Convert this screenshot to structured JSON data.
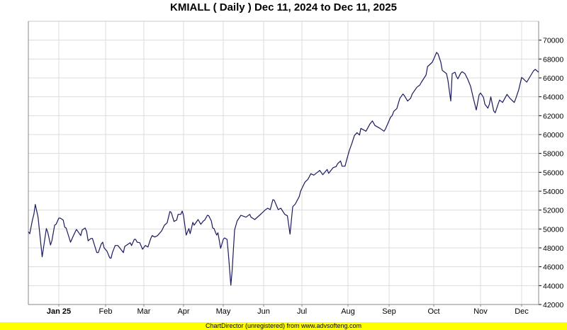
{
  "chart_data": {
    "type": "line",
    "title": "KMIALL ( Daily ) Dec 11, 2024 to Dec 11, 2025",
    "xlabel": "",
    "ylabel": "",
    "ylim": [
      42000,
      72000
    ],
    "y_ticks": [
      42000,
      44000,
      46000,
      48000,
      50000,
      52000,
      54000,
      56000,
      58000,
      60000,
      62000,
      64000,
      66000,
      68000,
      70000
    ],
    "x_tick_labels": [
      "Jan 25",
      "Feb",
      "Mar",
      "Apr",
      "May",
      "Jun",
      "Jul",
      "Aug",
      "Sep",
      "Oct",
      "Nov",
      "Dec"
    ],
    "grid": true,
    "y_axis_side": "right",
    "line_color": "#1a1a5e",
    "series": [
      {
        "points": [
          [
            "2024-12-11",
            49700
          ],
          [
            "2024-12-12",
            49500
          ],
          [
            "2024-12-14",
            51000
          ],
          [
            "2024-12-15",
            51550
          ],
          [
            "2024-12-16",
            52600
          ],
          [
            "2024-12-18",
            51250
          ],
          [
            "2024-12-21",
            47050
          ],
          [
            "2024-12-24",
            50050
          ],
          [
            "2024-12-25",
            49650
          ],
          [
            "2024-12-27",
            48300
          ],
          [
            "2024-12-28",
            48750
          ],
          [
            "2024-12-30",
            50400
          ],
          [
            "2024-12-31",
            50500
          ],
          [
            "2025-01-02",
            51150
          ],
          [
            "2025-01-03",
            51150
          ],
          [
            "2025-01-05",
            50950
          ],
          [
            "2025-01-06",
            50200
          ],
          [
            "2025-01-07",
            50100
          ],
          [
            "2025-01-10",
            48600
          ],
          [
            "2025-01-12",
            49300
          ],
          [
            "2025-01-14",
            49950
          ],
          [
            "2025-01-15",
            49750
          ],
          [
            "2025-01-17",
            49300
          ],
          [
            "2025-01-18",
            49900
          ],
          [
            "2025-01-20",
            50100
          ],
          [
            "2025-01-21",
            49750
          ],
          [
            "2025-01-22",
            48750
          ],
          [
            "2025-01-24",
            49000
          ],
          [
            "2025-01-25",
            49000
          ],
          [
            "2025-01-28",
            47500
          ],
          [
            "2025-01-29",
            47500
          ],
          [
            "2025-01-31",
            48400
          ],
          [
            "2025-02-01",
            48600
          ],
          [
            "2025-02-02",
            48000
          ],
          [
            "2025-02-04",
            47650
          ],
          [
            "2025-02-06",
            46950
          ],
          [
            "2025-02-07",
            46900
          ],
          [
            "2025-02-08",
            47500
          ],
          [
            "2025-02-10",
            48250
          ],
          [
            "2025-02-12",
            48250
          ],
          [
            "2025-02-16",
            47500
          ],
          [
            "2025-02-17",
            48150
          ],
          [
            "2025-02-21",
            48550
          ],
          [
            "2025-02-22",
            48250
          ],
          [
            "2025-02-24",
            48900
          ],
          [
            "2025-02-25",
            48900
          ],
          [
            "2025-02-26",
            48600
          ],
          [
            "2025-02-28",
            48550
          ],
          [
            "2025-03-02",
            47850
          ],
          [
            "2025-03-04",
            48250
          ],
          [
            "2025-03-06",
            48100
          ],
          [
            "2025-03-08",
            49000
          ],
          [
            "2025-03-09",
            49300
          ],
          [
            "2025-03-11",
            49150
          ],
          [
            "2025-03-13",
            49300
          ],
          [
            "2025-03-16",
            49800
          ],
          [
            "2025-03-18",
            50400
          ],
          [
            "2025-03-20",
            50650
          ],
          [
            "2025-03-22",
            51850
          ],
          [
            "2025-03-23",
            51750
          ],
          [
            "2025-03-25",
            50800
          ],
          [
            "2025-03-27",
            50950
          ],
          [
            "2025-03-28",
            51550
          ],
          [
            "2025-03-30",
            51550
          ],
          [
            "2025-03-31",
            51900
          ],
          [
            "2025-04-01",
            51400
          ],
          [
            "2025-04-03",
            49350
          ],
          [
            "2025-04-05",
            50050
          ],
          [
            "2025-04-06",
            49500
          ],
          [
            "2025-04-08",
            50700
          ],
          [
            "2025-04-09",
            50400
          ],
          [
            "2025-04-12",
            51000
          ],
          [
            "2025-04-14",
            50500
          ],
          [
            "2025-04-16",
            50850
          ],
          [
            "2025-04-17",
            50950
          ],
          [
            "2025-04-19",
            51450
          ],
          [
            "2025-04-20",
            51400
          ],
          [
            "2025-04-22",
            50850
          ],
          [
            "2025-04-23",
            50100
          ],
          [
            "2025-04-24",
            50050
          ],
          [
            "2025-04-26",
            49350
          ],
          [
            "2025-04-27",
            49600
          ],
          [
            "2025-04-29",
            47950
          ],
          [
            "2025-05-01",
            48900
          ],
          [
            "2025-05-02",
            49050
          ],
          [
            "2025-05-04",
            48900
          ],
          [
            "2025-05-05",
            47500
          ],
          [
            "2025-05-07",
            44050
          ],
          [
            "2025-05-08",
            45550
          ],
          [
            "2025-05-10",
            49900
          ],
          [
            "2025-05-12",
            50850
          ],
          [
            "2025-05-15",
            51450
          ],
          [
            "2025-05-19",
            51250
          ],
          [
            "2025-05-22",
            51550
          ],
          [
            "2025-05-23",
            51250
          ],
          [
            "2025-05-26",
            51000
          ],
          [
            "2025-05-31",
            51600
          ],
          [
            "2025-06-03",
            52000
          ],
          [
            "2025-06-05",
            52200
          ],
          [
            "2025-06-07",
            52050
          ],
          [
            "2025-06-09",
            53100
          ],
          [
            "2025-06-10",
            53050
          ],
          [
            "2025-06-13",
            52050
          ],
          [
            "2025-06-15",
            52200
          ],
          [
            "2025-06-18",
            51550
          ],
          [
            "2025-06-20",
            51400
          ],
          [
            "2025-06-22",
            49450
          ],
          [
            "2025-06-24",
            52350
          ],
          [
            "2025-06-26",
            52650
          ],
          [
            "2025-06-29",
            53450
          ],
          [
            "2025-06-30",
            54000
          ],
          [
            "2025-07-03",
            54950
          ],
          [
            "2025-07-05",
            55250
          ],
          [
            "2025-07-07",
            55850
          ],
          [
            "2025-07-09",
            55700
          ],
          [
            "2025-07-13",
            56200
          ],
          [
            "2025-07-15",
            55750
          ],
          [
            "2025-07-18",
            56300
          ],
          [
            "2025-07-19",
            55900
          ],
          [
            "2025-07-22",
            56500
          ],
          [
            "2025-07-24",
            56600
          ],
          [
            "2025-07-25",
            56900
          ],
          [
            "2025-07-27",
            57200
          ],
          [
            "2025-07-28",
            56650
          ],
          [
            "2025-07-30",
            56650
          ],
          [
            "2025-07-31",
            57250
          ],
          [
            "2025-08-02",
            58300
          ],
          [
            "2025-08-04",
            59050
          ],
          [
            "2025-08-06",
            59900
          ],
          [
            "2025-08-08",
            60200
          ],
          [
            "2025-08-10",
            59950
          ],
          [
            "2025-08-11",
            60650
          ],
          [
            "2025-08-15",
            60350
          ],
          [
            "2025-08-18",
            61100
          ],
          [
            "2025-08-20",
            61450
          ],
          [
            "2025-08-22",
            60950
          ],
          [
            "2025-08-26",
            60650
          ],
          [
            "2025-08-29",
            60350
          ],
          [
            "2025-08-30",
            60550
          ],
          [
            "2025-09-03",
            61850
          ],
          [
            "2025-09-04",
            62000
          ],
          [
            "2025-09-05",
            62450
          ],
          [
            "2025-09-07",
            62750
          ],
          [
            "2025-09-09",
            63850
          ],
          [
            "2025-09-11",
            64300
          ],
          [
            "2025-09-12",
            64100
          ],
          [
            "2025-09-14",
            63550
          ],
          [
            "2025-09-16",
            63850
          ],
          [
            "2025-09-17",
            64300
          ],
          [
            "2025-09-20",
            65000
          ],
          [
            "2025-09-22",
            65250
          ],
          [
            "2025-09-23",
            65550
          ],
          [
            "2025-09-26",
            66300
          ],
          [
            "2025-09-27",
            67200
          ],
          [
            "2025-09-30",
            67650
          ],
          [
            "2025-10-01",
            68000
          ],
          [
            "2025-10-03",
            68700
          ],
          [
            "2025-10-04",
            68550
          ],
          [
            "2025-10-06",
            67650
          ],
          [
            "2025-10-07",
            66800
          ],
          [
            "2025-10-10",
            66450
          ],
          [
            "2025-10-11",
            65750
          ],
          [
            "2025-10-13",
            63550
          ],
          [
            "2025-10-14",
            66450
          ],
          [
            "2025-10-16",
            66600
          ],
          [
            "2025-10-17",
            66150
          ],
          [
            "2025-10-18",
            65900
          ],
          [
            "2025-10-20",
            66500
          ],
          [
            "2025-10-21",
            66650
          ],
          [
            "2025-10-23",
            66450
          ],
          [
            "2025-10-25",
            65850
          ],
          [
            "2025-10-27",
            65100
          ],
          [
            "2025-10-29",
            63800
          ],
          [
            "2025-10-31",
            62600
          ],
          [
            "2025-11-02",
            64200
          ],
          [
            "2025-11-03",
            64400
          ],
          [
            "2025-11-05",
            63950
          ],
          [
            "2025-11-06",
            63200
          ],
          [
            "2025-11-08",
            62800
          ],
          [
            "2025-11-09",
            63200
          ],
          [
            "2025-11-10",
            64000
          ],
          [
            "2025-11-12",
            62500
          ],
          [
            "2025-11-13",
            62300
          ],
          [
            "2025-11-15",
            63250
          ],
          [
            "2025-11-16",
            63650
          ],
          [
            "2025-11-18",
            63400
          ],
          [
            "2025-11-21",
            64250
          ],
          [
            "2025-11-23",
            63850
          ],
          [
            "2025-11-26",
            63400
          ],
          [
            "2025-11-27",
            63800
          ],
          [
            "2025-11-29",
            64750
          ],
          [
            "2025-12-01",
            66050
          ],
          [
            "2025-12-02",
            65900
          ],
          [
            "2025-12-04",
            65550
          ],
          [
            "2025-12-06",
            66150
          ],
          [
            "2025-12-08",
            66750
          ],
          [
            "2025-12-09",
            66900
          ],
          [
            "2025-12-11",
            66600
          ]
        ]
      }
    ]
  },
  "footer": {
    "text": "ChartDirector (unregistered) from www.advsofteng.com"
  }
}
